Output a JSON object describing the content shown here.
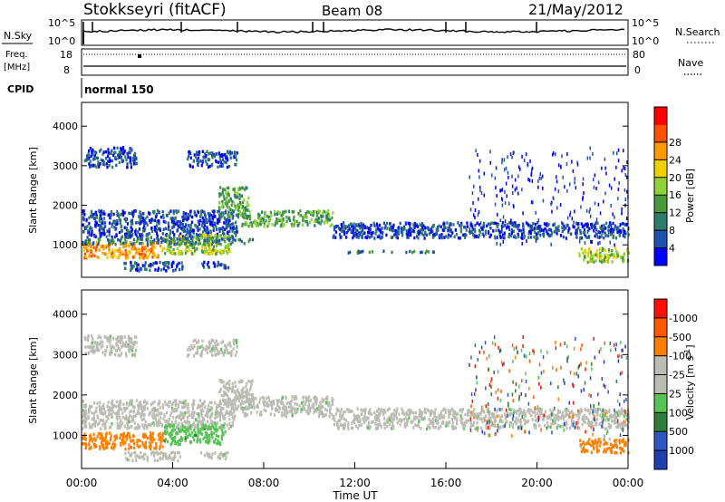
{
  "header": {
    "station": "Stokkseyri (fitACF)",
    "beam": "Beam 08",
    "date": "21/May/2012"
  },
  "status_panels": {
    "nsky": {
      "label": "N.Sky",
      "ticks": [
        "10^5",
        "10^0"
      ]
    },
    "nsearch": {
      "label": "N.Search",
      "ticks": [
        "10^5",
        "10^0"
      ]
    },
    "freq": {
      "label_line1": "Freq.",
      "label_line2": "[MHz]",
      "ticks": [
        "18",
        "8"
      ]
    },
    "nave": {
      "label": "Nave",
      "ticks": [
        "80",
        "0"
      ]
    },
    "cpid": {
      "label": "CPID",
      "value": "normal 150"
    }
  },
  "chart_data": [
    {
      "type": "heatmap",
      "panel": "power",
      "ylabel": "Slant Range [km]",
      "yticks": [
        1000,
        2000,
        3000,
        4000
      ],
      "ylim": [
        180,
        4600
      ],
      "xlim_hours": [
        0,
        24
      ],
      "colorbar": {
        "label": "Power [dB]",
        "ticks": [
          "4",
          "8",
          "12",
          "16",
          "20",
          "24",
          "28"
        ],
        "colors": [
          "#0000ff",
          "#1f4fb0",
          "#2e7d6a",
          "#4a9a3c",
          "#8fd33a",
          "#f0d000",
          "#ff9900",
          "#ff5000",
          "#ff0000"
        ]
      },
      "bands": [
        {
          "t": [
            0.0,
            6.8
          ],
          "range": [
            1200,
            1900
          ],
          "level": 1
        },
        {
          "t": [
            0.0,
            3.5
          ],
          "range": [
            700,
            1100
          ],
          "level": 6
        },
        {
          "t": [
            3.5,
            6.5
          ],
          "range": [
            800,
            1300
          ],
          "level": 4
        },
        {
          "t": [
            0.0,
            7.5
          ],
          "range": [
            1050,
            1200
          ],
          "level": 2
        },
        {
          "t": [
            0.1,
            2.4
          ],
          "range": [
            3000,
            3500
          ],
          "level": 1
        },
        {
          "t": [
            4.6,
            6.8
          ],
          "range": [
            3000,
            3400
          ],
          "level": 1
        },
        {
          "t": [
            6.0,
            7.3
          ],
          "range": [
            1700,
            2500
          ],
          "level": 3
        },
        {
          "t": [
            7.0,
            11.0
          ],
          "range": [
            1500,
            1900
          ],
          "level": 3
        },
        {
          "t": [
            11.0,
            24.0
          ],
          "range": [
            1200,
            1600
          ],
          "level": 1
        },
        {
          "t": [
            17.0,
            24.0
          ],
          "range": [
            1000,
            3500
          ],
          "level": 0
        },
        {
          "t": [
            21.8,
            24.0
          ],
          "range": [
            600,
            950
          ],
          "level": 4
        },
        {
          "t": [
            1.8,
            4.4
          ],
          "range": [
            380,
            600
          ],
          "level": 1
        },
        {
          "t": [
            5.2,
            6.5
          ],
          "range": [
            450,
            600
          ],
          "level": 1
        },
        {
          "t": [
            11.5,
            15.5
          ],
          "range": [
            830,
            880
          ],
          "level": 2
        }
      ]
    },
    {
      "type": "heatmap",
      "panel": "velocity",
      "ylabel": "Slant Range [km]",
      "yticks": [
        1000,
        2000,
        3000,
        4000
      ],
      "ylim": [
        180,
        4600
      ],
      "xlim_hours": [
        0,
        24
      ],
      "xticks": [
        "00:00",
        "04:00",
        "08:00",
        "12:00",
        "16:00",
        "20:00",
        "00:00"
      ],
      "xlabel": "Time UT",
      "colorbar": {
        "label": "Velocity [m s^-1]",
        "ticks": [
          "1000",
          "500",
          "100",
          "25",
          "-25",
          "-100",
          "-500",
          "-1000"
        ],
        "colors": [
          "#1f3fb0",
          "#2f55c0",
          "#2e7d3a",
          "#55c455",
          "#bcbcb4",
          "#bcbcb4",
          "#ff8000",
          "#ff5a00",
          "#ff1000"
        ]
      },
      "bands": [
        {
          "t": [
            0.0,
            6.8
          ],
          "range": [
            1200,
            1900
          ],
          "vel": 4
        },
        {
          "t": [
            0.0,
            3.6
          ],
          "range": [
            700,
            1100
          ],
          "vel": 6
        },
        {
          "t": [
            3.6,
            6.3
          ],
          "range": [
            800,
            1300
          ],
          "vel": 3
        },
        {
          "t": [
            0.1,
            2.4
          ],
          "range": [
            3000,
            3500
          ],
          "vel": 4
        },
        {
          "t": [
            4.6,
            6.8
          ],
          "range": [
            3000,
            3400
          ],
          "vel": 4
        },
        {
          "t": [
            6.0,
            7.5
          ],
          "range": [
            1700,
            2400
          ],
          "vel": 4
        },
        {
          "t": [
            7.0,
            11.0
          ],
          "range": [
            1500,
            2000
          ],
          "vel": 4
        },
        {
          "t": [
            11.0,
            24.0
          ],
          "range": [
            1200,
            1700
          ],
          "vel": 4
        },
        {
          "t": [
            17.0,
            24.0
          ],
          "range": [
            1000,
            3500
          ],
          "vel": 7
        },
        {
          "t": [
            21.8,
            24.0
          ],
          "range": [
            600,
            950
          ],
          "vel": 6
        },
        {
          "t": [
            1.8,
            4.3
          ],
          "range": [
            400,
            620
          ],
          "vel": 4
        },
        {
          "t": [
            5.2,
            6.5
          ],
          "range": [
            450,
            620
          ],
          "vel": 4
        }
      ]
    }
  ]
}
